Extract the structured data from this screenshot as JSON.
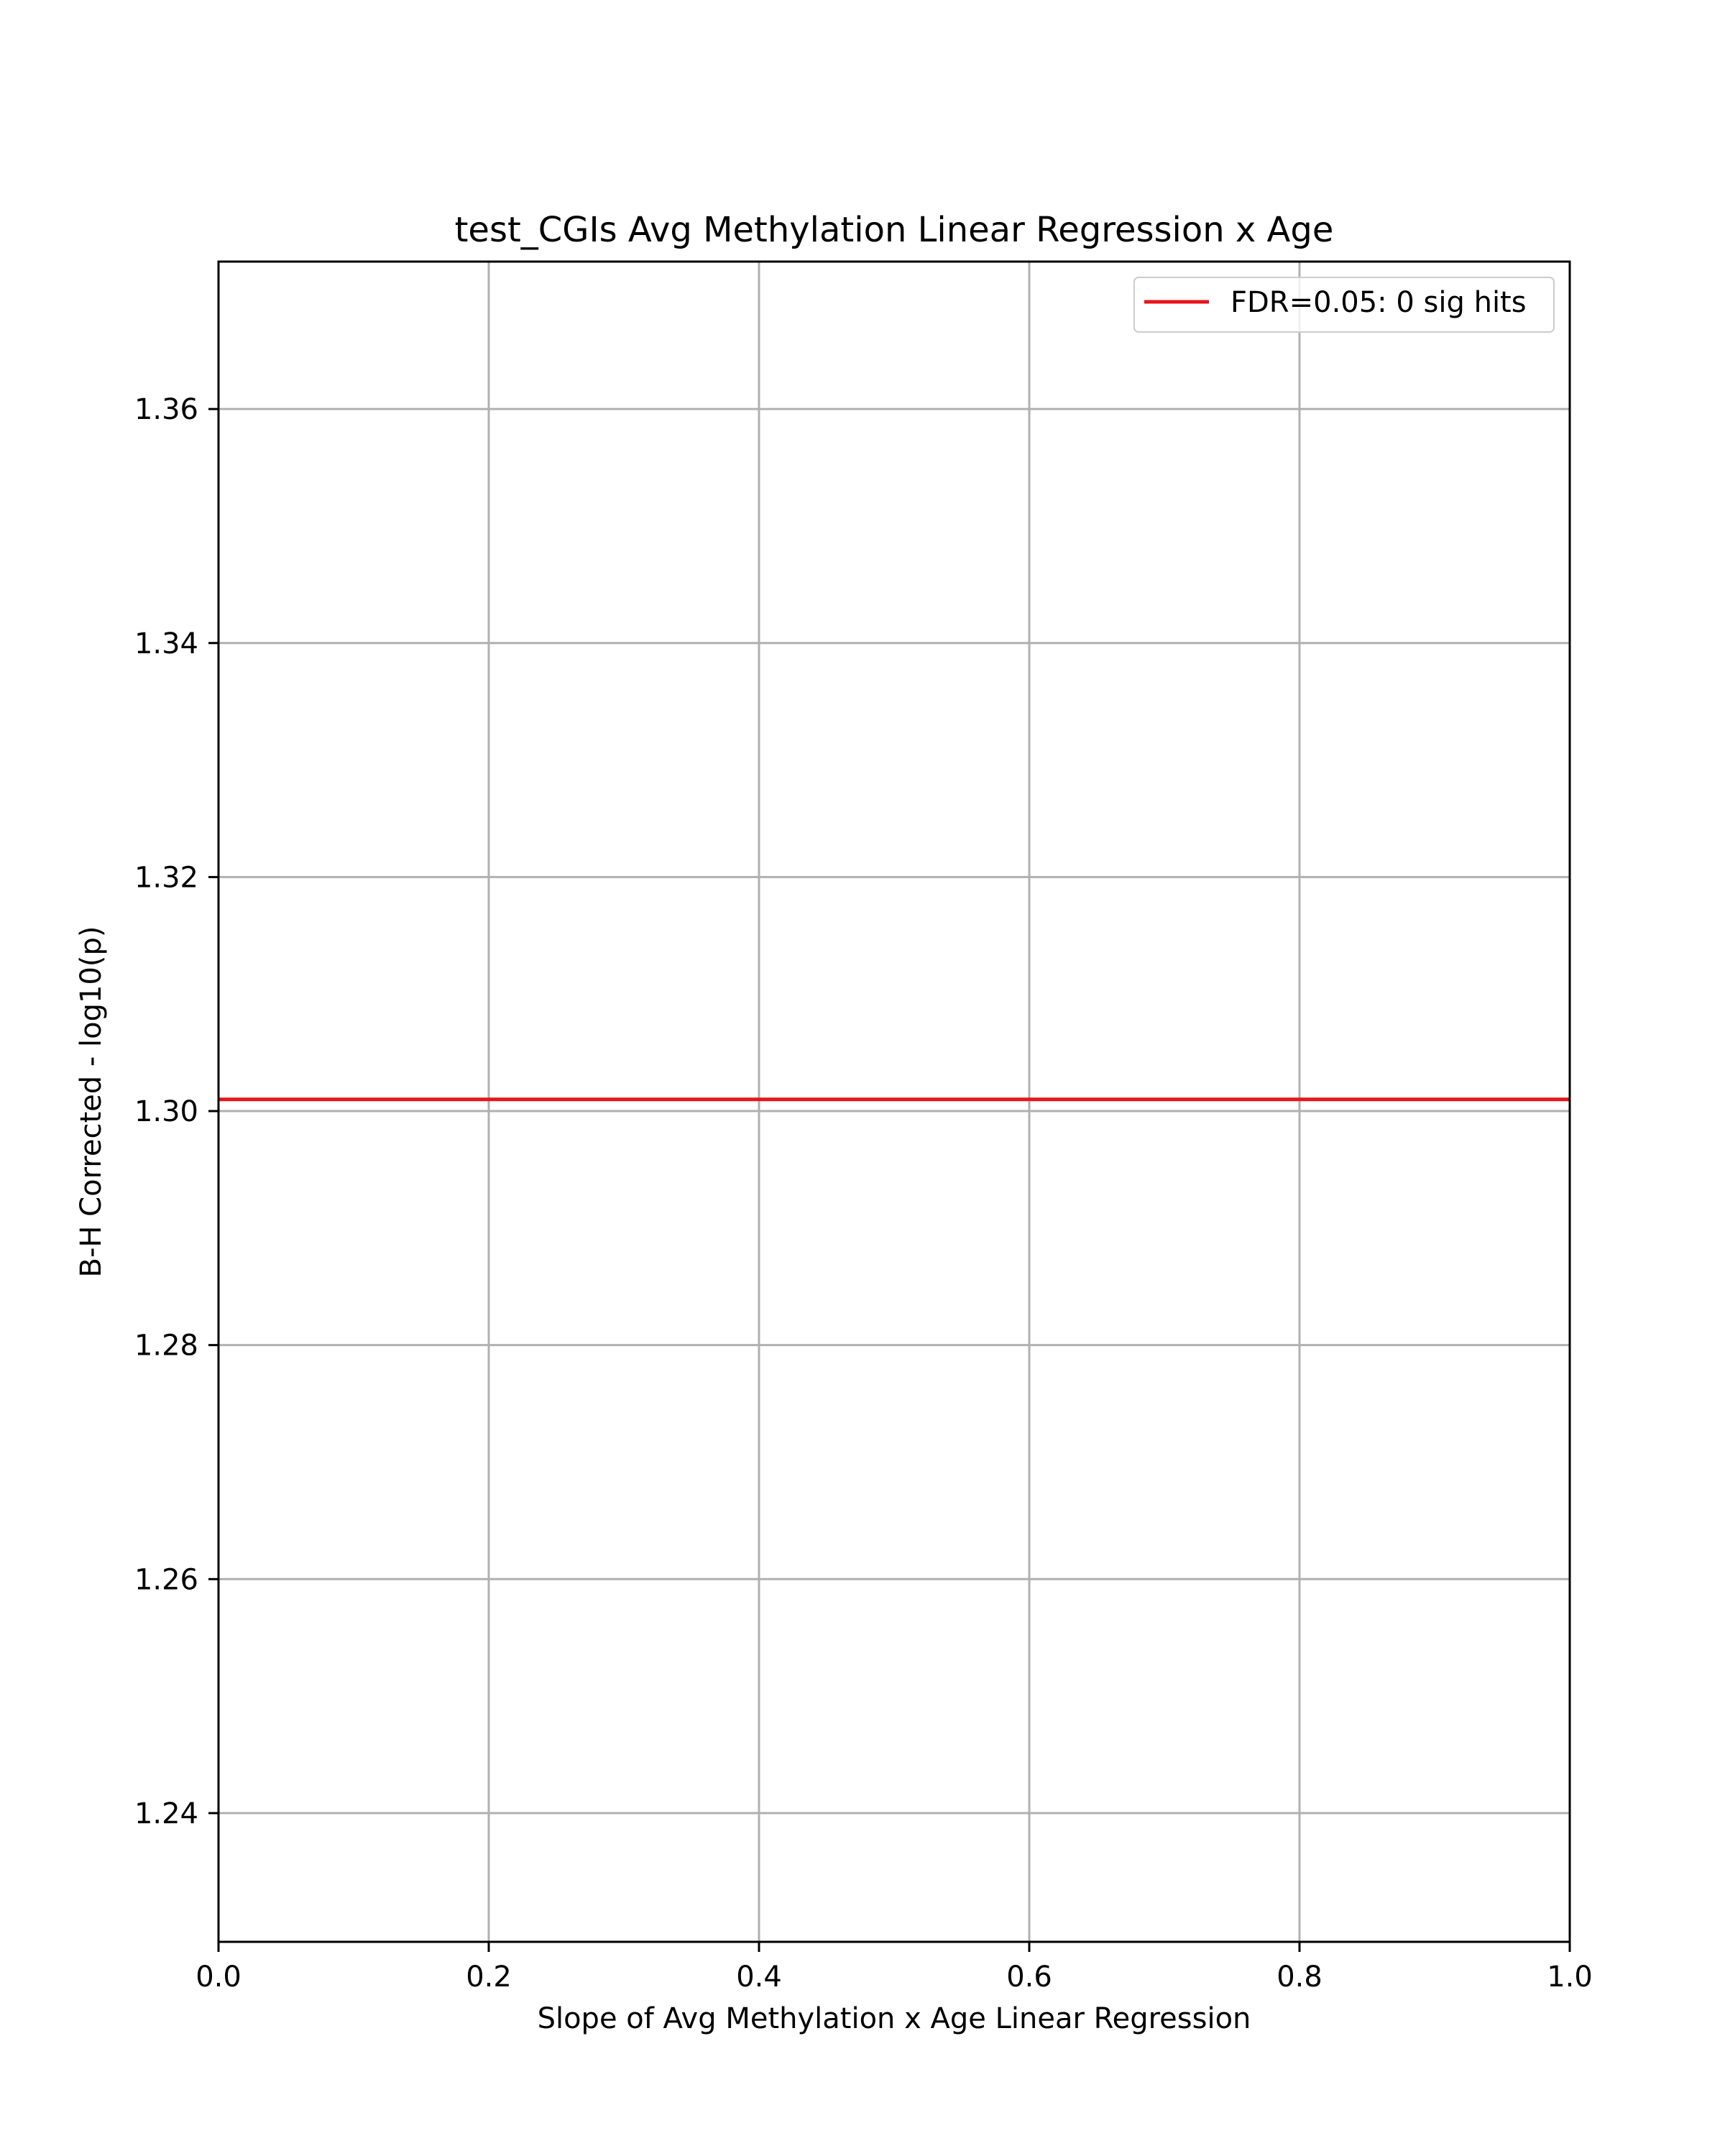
{
  "chart_data": {
    "type": "line",
    "title": "test_CGIs Avg Methylation Linear Regression x Age",
    "xlabel": "Slope of Avg Methylation x Age Linear Regression",
    "ylabel": "B-H Corrected - log10(p)",
    "xlim": [
      0.0,
      1.0
    ],
    "ylim": [
      1.229,
      1.3726
    ],
    "x_ticks": [
      0.0,
      0.2,
      0.4,
      0.6,
      0.8,
      1.0
    ],
    "x_tick_labels": [
      "0.0",
      "0.2",
      "0.4",
      "0.6",
      "0.8",
      "1.0"
    ],
    "y_ticks": [
      1.24,
      1.26,
      1.28,
      1.3,
      1.32,
      1.34,
      1.36
    ],
    "y_tick_labels": [
      "1.24",
      "1.26",
      "1.28",
      "1.30",
      "1.32",
      "1.34",
      "1.36"
    ],
    "grid": true,
    "legend_position": "top-right",
    "series": [
      {
        "name": "FDR=0.05: 0 sig hits",
        "kind": "horizontal-line",
        "y": 1.301,
        "color": "#e8141a"
      }
    ],
    "colors": {
      "grid": "#b0b0b0",
      "axes": "#000000",
      "background": "#ffffff"
    }
  }
}
